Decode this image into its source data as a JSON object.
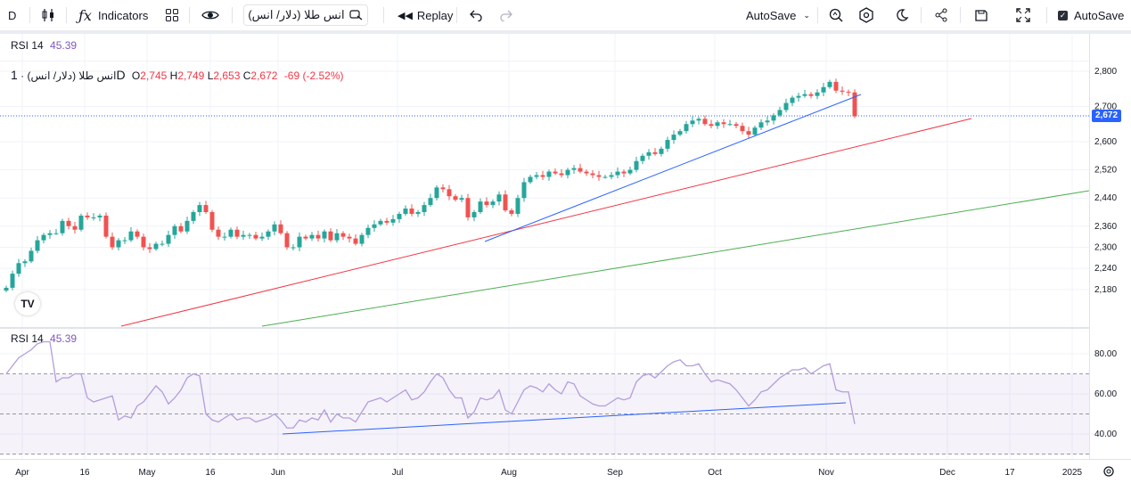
{
  "toolbar": {
    "interval": "D",
    "indicators_label": "Indicators",
    "symbol": "انس طلا (دلار/ انس)",
    "replay_label": "Replay",
    "autosave_label": "AutoSave",
    "autosave_check_label": "AutoSave"
  },
  "rsi_header": {
    "name": "RSI 14",
    "value": "45.39"
  },
  "legend": {
    "symbol": "انس طلا (دلار/ انس)",
    "interval": "1D",
    "o_label": "O",
    "o": "2,745",
    "h_label": "H",
    "h": "2,749",
    "l_label": "L",
    "l": "2,653",
    "c_label": "C",
    "c": "2,672",
    "change": "-69 (-2.52%)"
  },
  "rsi_legend": {
    "name": "RSI 14",
    "value": "45.39"
  },
  "last_price": "2,672",
  "logo_text": "TV",
  "colors": {
    "up": "#26a69a",
    "down": "#ef5350",
    "rsi": "#b39ddb",
    "trend_blue": "#2962ff",
    "trend_red": "#f23645",
    "trend_green": "#4caf50",
    "rsi_band": "#7e57c2"
  },
  "icons": [
    "fx-icon",
    "candles-icon",
    "templates-icon",
    "eye-icon",
    "search-icon",
    "replay-icon",
    "undo-icon",
    "redo-icon",
    "chevron-down-icon",
    "zoom-icon",
    "settings-icon",
    "moon-icon",
    "share-icon",
    "snapshot-icon",
    "fullscreen-icon",
    "check-icon",
    "gear-icon"
  ],
  "chart_data": {
    "type": "candlestick",
    "price_axis": [
      2800,
      2700,
      2600,
      2520,
      2440,
      2360,
      2300,
      2240,
      2180
    ],
    "price_axis_labels": [
      "2,800",
      "2,700",
      "2,600",
      "2,520",
      "2,440",
      "2,360",
      "2,300",
      "2,240",
      "2,180"
    ],
    "rsi_axis": [
      80,
      60,
      40
    ],
    "rsi_axis_labels": [
      "80.00",
      "60.00",
      "40.00"
    ],
    "rsi_levels": [
      70,
      50,
      30
    ],
    "time_axis": [
      "Apr",
      "16",
      "May",
      "16",
      "Jun",
      "Jul",
      "Aug",
      "Sep",
      "Oct",
      "Nov",
      "Dec",
      "17",
      "2025"
    ],
    "closes": [
      2185,
      2225,
      2255,
      2260,
      2290,
      2320,
      2335,
      2340,
      2340,
      2375,
      2360,
      2350,
      2390,
      2385,
      2385,
      2390,
      2330,
      2300,
      2320,
      2320,
      2345,
      2330,
      2300,
      2295,
      2310,
      2310,
      2335,
      2360,
      2345,
      2375,
      2400,
      2420,
      2400,
      2350,
      2330,
      2330,
      2350,
      2330,
      2335,
      2335,
      2325,
      2330,
      2345,
      2365,
      2340,
      2300,
      2300,
      2330,
      2325,
      2335,
      2325,
      2345,
      2320,
      2340,
      2330,
      2325,
      2310,
      2335,
      2355,
      2365,
      2375,
      2370,
      2380,
      2395,
      2410,
      2395,
      2400,
      2420,
      2440,
      2470,
      2465,
      2445,
      2435,
      2440,
      2385,
      2400,
      2430,
      2420,
      2430,
      2450,
      2405,
      2395,
      2440,
      2485,
      2500,
      2505,
      2500,
      2515,
      2510,
      2505,
      2520,
      2525,
      2515,
      2510,
      2505,
      2500,
      2500,
      2505,
      2515,
      2510,
      2520,
      2545,
      2560,
      2570,
      2565,
      2580,
      2605,
      2620,
      2630,
      2650,
      2660,
      2665,
      2650,
      2645,
      2655,
      2650,
      2650,
      2645,
      2630,
      2620,
      2640,
      2655,
      2660,
      2675,
      2690,
      2710,
      2725,
      2730,
      2735,
      2730,
      2740,
      2755,
      2770,
      2745,
      2742,
      2740,
      2672
    ],
    "rsi": [
      70,
      74,
      78,
      80,
      82,
      85,
      86,
      86,
      66,
      68,
      68,
      70,
      70,
      58,
      56,
      57,
      58,
      59,
      47,
      49,
      48,
      54,
      56,
      60,
      64,
      61,
      55,
      58,
      62,
      68,
      70,
      69,
      50,
      47,
      46,
      48,
      50,
      47,
      48,
      48,
      46,
      47,
      48,
      50,
      47,
      43,
      43,
      47,
      46,
      48,
      47,
      52,
      46,
      50,
      48,
      48,
      46,
      51,
      56,
      57,
      58,
      56,
      58,
      60,
      62,
      57,
      58,
      61,
      66,
      70,
      68,
      62,
      58,
      58,
      48,
      51,
      58,
      57,
      58,
      62,
      52,
      50,
      56,
      62,
      64,
      63,
      61,
      65,
      62,
      60,
      66,
      65,
      59,
      57,
      55,
      54,
      54,
      56,
      58,
      57,
      58,
      66,
      69,
      70,
      68,
      71,
      74,
      76,
      77,
      74,
      74,
      75,
      70,
      66,
      67,
      66,
      65,
      62,
      58,
      54,
      57,
      61,
      62,
      65,
      68,
      70,
      72,
      72,
      73,
      70,
      72,
      74,
      75,
      62,
      61,
      61,
      45
    ]
  }
}
